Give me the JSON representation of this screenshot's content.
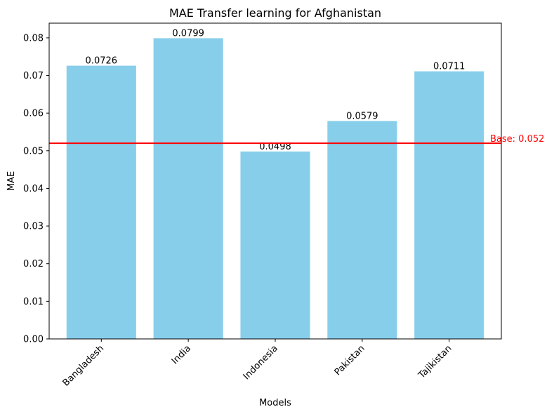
{
  "chart_data": {
    "type": "bar",
    "title": "MAE Transfer learning for Afghanistan",
    "xlabel": "Models",
    "ylabel": "MAE",
    "categories": [
      "Bangladesh",
      "India",
      "Indonesia",
      "Pakistan",
      "Tajikistan"
    ],
    "values": [
      0.0726,
      0.0799,
      0.0498,
      0.0579,
      0.0711
    ],
    "value_labels": [
      "0.0726",
      "0.0799",
      "0.0498",
      "0.0579",
      "0.0711"
    ],
    "ylim": [
      0,
      0.0839
    ],
    "yticks": [
      0.0,
      0.01,
      0.02,
      0.03,
      0.04,
      0.05,
      0.06,
      0.07,
      0.08
    ],
    "ytick_labels": [
      "0.00",
      "0.01",
      "0.02",
      "0.03",
      "0.04",
      "0.05",
      "0.06",
      "0.07",
      "0.08"
    ],
    "xtick_rotation": 45,
    "grid": false,
    "bar_color": "#87ceeb",
    "baseline": {
      "value": 0.052,
      "label": "Base: 0.052",
      "color": "#ff0000"
    }
  }
}
